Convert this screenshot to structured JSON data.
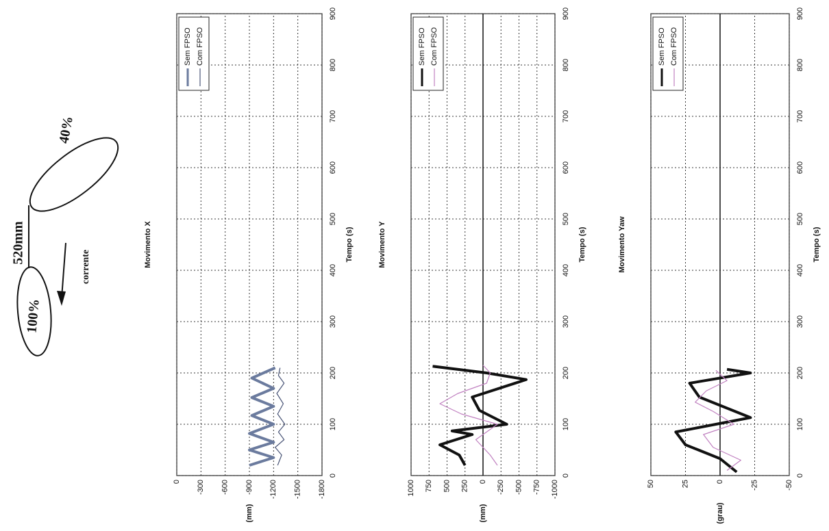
{
  "diagram": {
    "length_label": "520mm",
    "top_label": "40%",
    "bottom_label": "100%",
    "arrow_label": "corrente"
  },
  "chart_data": [
    {
      "type": "line",
      "title": "Movimento X",
      "xlabel": "Tempo (s)",
      "ylabel": "(mm)",
      "xlim": [
        0,
        900
      ],
      "xticks": [
        0,
        100,
        200,
        300,
        400,
        500,
        600,
        700,
        800,
        900
      ],
      "ylim": [
        -1800,
        0
      ],
      "yticks": [
        0,
        -300,
        -600,
        -900,
        -1200,
        -1500,
        -1800
      ],
      "grid": true,
      "zero_line": false,
      "series": [
        {
          "name": "Sem FPSO",
          "color": "#6b7b9e",
          "x": [
            20,
            35,
            50,
            65,
            82,
            100,
            117,
            135,
            152,
            170,
            190,
            210
          ],
          "values": [
            -900,
            -1200,
            -900,
            -1200,
            -900,
            -1200,
            -930,
            -1200,
            -930,
            -1200,
            -930,
            -1220
          ]
        },
        {
          "name": "Com FPSO",
          "color": "#4a5577",
          "x": [
            20,
            40,
            55,
            70,
            85,
            100,
            120,
            140,
            160,
            180,
            195,
            210
          ],
          "values": [
            -1250,
            -1300,
            -1220,
            -1330,
            -1260,
            -1340,
            -1250,
            -1320,
            -1240,
            -1330,
            -1260,
            -1280
          ]
        }
      ]
    },
    {
      "type": "line",
      "title": "Movimento Y",
      "xlabel": "Tempo (s)",
      "ylabel": "(mm)",
      "xlim": [
        0,
        900
      ],
      "xticks": [
        0,
        100,
        200,
        300,
        400,
        500,
        600,
        700,
        800,
        900
      ],
      "ylim": [
        -1000,
        1000
      ],
      "yticks": [
        1000,
        750,
        500,
        250,
        0,
        -250,
        -500,
        -750,
        -1000
      ],
      "grid": true,
      "zero_line": true,
      "series": [
        {
          "name": "Sem FPSO",
          "color": "#111111",
          "x": [
            20,
            40,
            60,
            80,
            87,
            100,
            127,
            153,
            187,
            200,
            213
          ],
          "values": [
            250,
            330,
            600,
            150,
            430,
            -330,
            50,
            150,
            -600,
            -50,
            700
          ]
        },
        {
          "name": "Com FPSO",
          "color": "#c080c0",
          "x": [
            20,
            40,
            70,
            100,
            120,
            140,
            160,
            180,
            200,
            215
          ],
          "values": [
            -200,
            -100,
            100,
            -200,
            300,
            600,
            350,
            -50,
            -100,
            0
          ]
        }
      ]
    },
    {
      "type": "line",
      "title": "Movimento Yaw",
      "xlabel": "Tempo (s)",
      "ylabel": "(grau)",
      "xlim": [
        0,
        900
      ],
      "xticks": [
        0,
        100,
        200,
        300,
        400,
        500,
        600,
        700,
        800,
        900
      ],
      "ylim": [
        -50,
        50
      ],
      "yticks": [
        50,
        25,
        0,
        -25,
        -50
      ],
      "grid": true,
      "zero_line": true,
      "series": [
        {
          "name": "Sem FPSO",
          "color": "#111111",
          "x": [
            7,
            33,
            60,
            85,
            113,
            153,
            180,
            200,
            207
          ],
          "values": [
            -12,
            0,
            25,
            32,
            -22,
            15,
            22,
            -22,
            -5
          ]
        },
        {
          "name": "Com FPSO",
          "color": "#c080c0",
          "x": [
            10,
            30,
            55,
            80,
            100,
            125,
            143,
            165,
            185,
            205
          ],
          "values": [
            -5,
            -15,
            5,
            12,
            -10,
            5,
            18,
            10,
            -5,
            3
          ]
        }
      ]
    }
  ]
}
